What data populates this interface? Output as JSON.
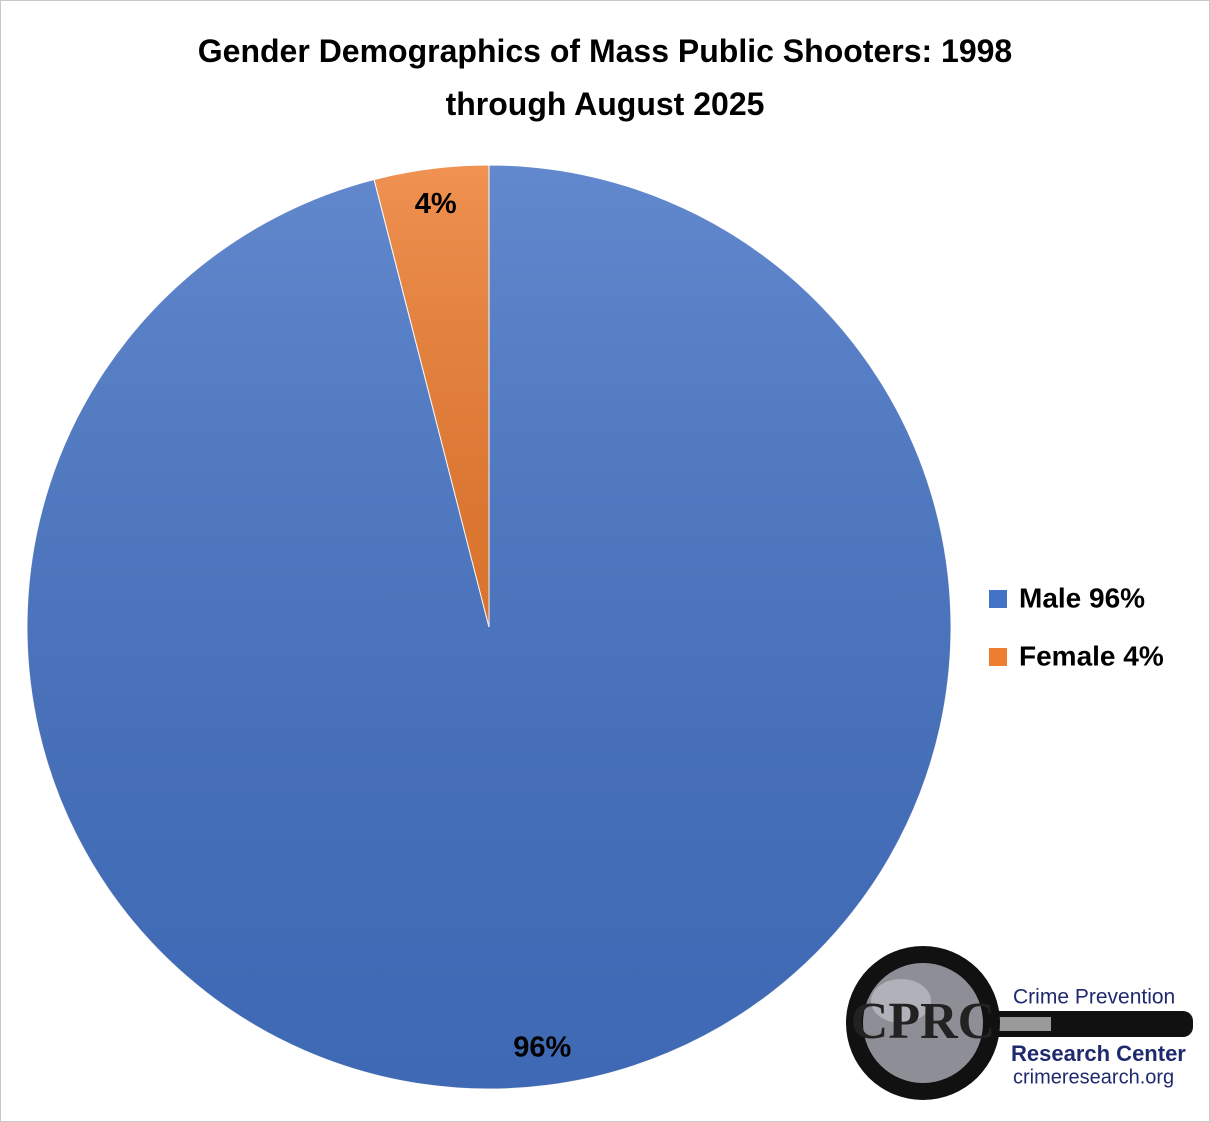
{
  "chart_data": {
    "type": "pie",
    "title": "Gender Demographics of Mass Public Shooters: 1998 through August 2025",
    "categories": [
      "Male 96%",
      "Female 4%"
    ],
    "values": [
      96,
      4
    ],
    "value_labels": [
      "96%",
      "4%"
    ],
    "colors": [
      "#4472c4",
      "#ed7d31"
    ],
    "legend": "right"
  },
  "logo": {
    "mark": "CPRC",
    "line1": "Crime Prevention",
    "line2": "Research Center",
    "url": "crimeresearch.org"
  }
}
